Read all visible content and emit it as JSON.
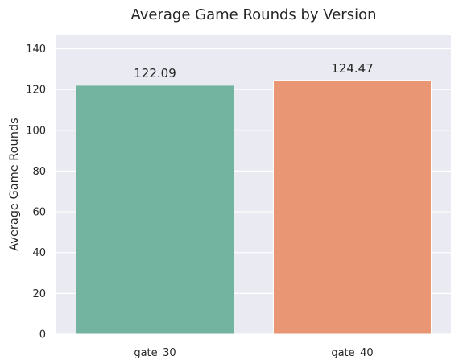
{
  "chart_data": {
    "type": "bar",
    "title": "Average Game Rounds by Version",
    "xlabel": "",
    "ylabel": "Average Game Rounds",
    "categories": [
      "gate_30",
      "gate_40"
    ],
    "values": [
      122.09,
      124.47
    ],
    "data_labels": [
      "122.09",
      "124.47"
    ],
    "ylim": [
      0,
      146.5
    ],
    "yticks": [
      0,
      20,
      40,
      60,
      80,
      100,
      120,
      140
    ],
    "ytick_labels": [
      "0",
      "20",
      "40",
      "60",
      "80",
      "100",
      "120",
      "140"
    ],
    "grid": true,
    "legend": "none",
    "colors": {
      "background": "#eaeaf2",
      "grid": "#ffffff",
      "bars": [
        "#73b4a0",
        "#e89674"
      ]
    }
  }
}
